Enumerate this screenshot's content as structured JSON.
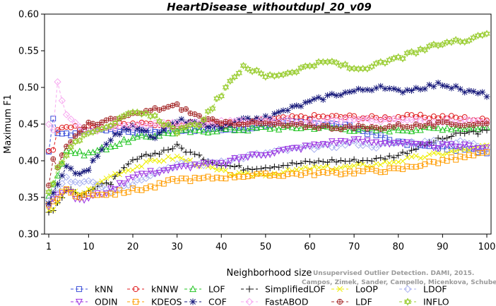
{
  "chart_data": {
    "type": "line",
    "title": "HeartDisease_withoutdupl_20_v09",
    "xlabel": "Neighborhood size",
    "ylabel": "Maximum F1",
    "xlim": [
      1,
      100
    ],
    "ylim": [
      0.3,
      0.6
    ],
    "x_ticks": [
      "1",
      "10",
      "20",
      "30",
      "40",
      "50",
      "60",
      "70",
      "80",
      "90",
      "100"
    ],
    "y_ticks": [
      "0.30",
      "0.35",
      "0.40",
      "0.45",
      "0.50",
      "0.55",
      "0.60"
    ],
    "grid": false,
    "legend_position": "bottom",
    "watermark_lines": [
      "Unsupervised Outlier Detection. DAMI, 2015.",
      "Campos, Zimek, Sander, Campello, Micenkova, Schubert, Assent, Houle"
    ],
    "x_knots": [
      1,
      2,
      3,
      5,
      8,
      10,
      15,
      20,
      25,
      30,
      35,
      40,
      45,
      50,
      55,
      60,
      65,
      70,
      75,
      80,
      85,
      90,
      95,
      100
    ],
    "series": [
      {
        "name": "kNN",
        "color": "#3b4fd8",
        "marker": "square",
        "values": [
          0.41,
          0.455,
          0.44,
          0.435,
          0.44,
          0.443,
          0.443,
          0.44,
          0.44,
          0.443,
          0.443,
          0.443,
          0.443,
          0.45,
          0.452,
          0.453,
          0.45,
          0.445,
          0.435,
          0.425,
          0.42,
          0.418,
          0.415,
          0.413
        ]
      },
      {
        "name": "kNNW",
        "color": "#e0191c",
        "marker": "circle",
        "values": [
          0.415,
          0.415,
          0.445,
          0.448,
          0.445,
          0.445,
          0.448,
          0.45,
          0.45,
          0.45,
          0.45,
          0.45,
          0.452,
          0.455,
          0.458,
          0.46,
          0.46,
          0.46,
          0.458,
          0.46,
          0.46,
          0.46,
          0.458,
          0.455
        ]
      },
      {
        "name": "LOF",
        "color": "#22c422",
        "marker": "triangle",
        "values": [
          0.355,
          0.37,
          0.38,
          0.415,
          0.41,
          0.41,
          0.42,
          0.43,
          0.435,
          0.44,
          0.44,
          0.443,
          0.443,
          0.445,
          0.445,
          0.446,
          0.445,
          0.443,
          0.442,
          0.443,
          0.443,
          0.445,
          0.445,
          0.445
        ]
      },
      {
        "name": "SimplifiedLOF",
        "color": "#111111",
        "marker": "plus",
        "values": [
          0.33,
          0.335,
          0.34,
          0.36,
          0.355,
          0.36,
          0.37,
          0.4,
          0.41,
          0.42,
          0.405,
          0.395,
          0.39,
          0.392,
          0.395,
          0.398,
          0.4,
          0.4,
          0.402,
          0.408,
          0.42,
          0.43,
          0.438,
          0.44
        ]
      },
      {
        "name": "LoOP",
        "color": "#eeee00",
        "marker": "cross",
        "values": [
          0.33,
          0.335,
          0.345,
          0.36,
          0.355,
          0.36,
          0.38,
          0.39,
          0.4,
          0.405,
          0.395,
          0.385,
          0.38,
          0.382,
          0.385,
          0.39,
          0.39,
          0.392,
          0.395,
          0.4,
          0.405,
          0.41,
          0.415,
          0.42
        ]
      },
      {
        "name": "LDOF",
        "color": "#a9b1f0",
        "marker": "diamond",
        "values": [
          0.345,
          0.35,
          0.36,
          0.375,
          0.37,
          0.375,
          0.36,
          0.37,
          0.385,
          0.395,
          0.395,
          0.4,
          0.405,
          0.41,
          0.415,
          0.418,
          0.42,
          0.425,
          0.42,
          0.425,
          0.425,
          0.425,
          0.425,
          0.418
        ]
      },
      {
        "name": "ODIN",
        "color": "#9b2fe0",
        "marker": "invtriangle",
        "values": [
          0.34,
          0.35,
          0.355,
          0.36,
          0.345,
          0.35,
          0.36,
          0.38,
          0.385,
          0.39,
          0.395,
          0.395,
          0.405,
          0.41,
          0.415,
          0.42,
          0.425,
          0.428,
          0.425,
          0.425,
          0.42,
          0.42,
          0.42,
          0.418
        ]
      },
      {
        "name": "KDEOS",
        "color": "#ff9c00",
        "marker": "square",
        "values": [
          0.34,
          0.345,
          0.35,
          0.36,
          0.35,
          0.355,
          0.355,
          0.36,
          0.365,
          0.375,
          0.375,
          0.378,
          0.38,
          0.38,
          0.382,
          0.383,
          0.383,
          0.385,
          0.387,
          0.388,
          0.395,
          0.4,
          0.405,
          0.41
        ]
      },
      {
        "name": "COF",
        "color": "#16187a",
        "marker": "star",
        "values": [
          0.34,
          0.355,
          0.37,
          0.39,
          0.38,
          0.39,
          0.43,
          0.45,
          0.43,
          0.455,
          0.45,
          0.445,
          0.455,
          0.458,
          0.47,
          0.48,
          0.49,
          0.495,
          0.5,
          0.495,
          0.5,
          0.505,
          0.495,
          0.49
        ]
      },
      {
        "name": "FastABOD",
        "color": "#f7a8f0",
        "marker": "diamond",
        "values": [
          0.45,
          0.44,
          0.505,
          0.46,
          0.445,
          0.44,
          0.445,
          0.448,
          0.45,
          0.45,
          0.452,
          0.452,
          0.455,
          0.455,
          0.455,
          0.455,
          0.455,
          0.455,
          0.455,
          0.455,
          0.455,
          0.455,
          0.455,
          0.455
        ]
      },
      {
        "name": "LDF",
        "color": "#a52a2a",
        "marker": "circleplus",
        "values": [
          0.365,
          0.4,
          0.39,
          0.42,
          0.44,
          0.45,
          0.455,
          0.462,
          0.47,
          0.475,
          0.46,
          0.45,
          0.452,
          0.45,
          0.448,
          0.448,
          0.446,
          0.445,
          0.445,
          0.448,
          0.448,
          0.45,
          0.45,
          0.45
        ]
      },
      {
        "name": "INFLO",
        "color": "#9acd32",
        "marker": "hexstar",
        "values": [
          0.36,
          0.37,
          0.39,
          0.41,
          0.43,
          0.44,
          0.45,
          0.465,
          0.46,
          0.44,
          0.45,
          0.49,
          0.53,
          0.515,
          0.52,
          0.53,
          0.535,
          0.525,
          0.53,
          0.54,
          0.55,
          0.56,
          0.565,
          0.575
        ]
      }
    ]
  }
}
